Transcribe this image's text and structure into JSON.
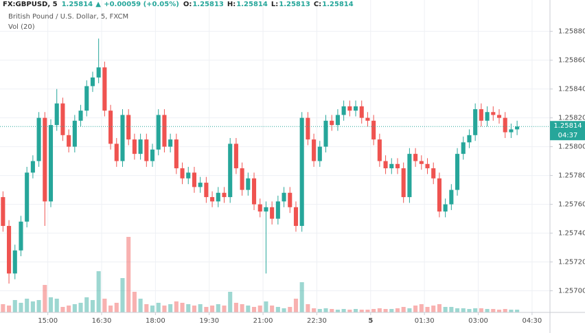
{
  "chart_data": {
    "type": "candlestick",
    "title": "FX:GBPUSD, 5",
    "change": "+0.00059 (+0.05%)",
    "header": {
      "o_label": "O:",
      "open": 1.25813,
      "h_label": "H:",
      "high": 1.25814,
      "l_label": "L:",
      "low": 1.25813,
      "c_label": "C:"
    },
    "subtitle": "British Pound / U.S. Dollar, 5, FXCM",
    "volume_label": "Vol (20)",
    "countdown": "04:37",
    "up_color": "#26a69a",
    "down_color": "#ef5350",
    "open": [
      1.25765,
      1.25745,
      1.25712,
      1.25728,
      1.25748,
      1.25782,
      1.2579,
      1.2582,
      1.25762,
      1.25815,
      1.2583,
      1.25808,
      1.258,
      1.25818,
      1.25825,
      1.25842,
      1.25848,
      1.25855,
      1.25825,
      1.25802,
      1.2579,
      1.25822,
      1.25805,
      1.25795,
      1.25805,
      1.2579,
      1.25798,
      1.25822,
      1.258,
      1.25805,
      1.25785,
      1.25778,
      1.25782,
      1.25772,
      1.25775,
      1.25765,
      1.25762,
      1.25768,
      1.25765,
      1.25802,
      1.25785,
      1.2577,
      1.25778,
      1.2576,
      1.25755,
      1.25758,
      1.2575,
      1.25762,
      1.25768,
      1.25758,
      1.25745,
      1.2582,
      1.25805,
      1.2579,
      1.258,
      1.25818,
      1.25815,
      1.25822,
      1.25828,
      1.25825,
      1.25828,
      1.2582,
      1.25818,
      1.25805,
      1.2579,
      1.25785,
      1.25788,
      1.25785,
      1.25765,
      1.25795,
      1.2579,
      1.25788,
      1.25785,
      1.25778,
      1.25755,
      1.2576,
      1.2577,
      1.25795,
      1.25803,
      1.25808,
      1.25826,
      1.25818,
      1.25824,
      1.25822,
      1.2582,
      1.2581,
      1.25812
    ],
    "high": [
      1.25769,
      1.25749,
      1.25732,
      1.25752,
      1.25786,
      1.25794,
      1.25824,
      1.25824,
      1.25819,
      1.2584,
      1.25834,
      1.25812,
      1.25822,
      1.25829,
      1.25846,
      1.25852,
      1.25875,
      1.25859,
      1.25829,
      1.25806,
      1.25826,
      1.25826,
      1.25809,
      1.25809,
      1.25809,
      1.25802,
      1.25826,
      1.25826,
      1.25809,
      1.25809,
      1.25789,
      1.25786,
      1.25786,
      1.25779,
      1.25779,
      1.25769,
      1.25772,
      1.25772,
      1.25806,
      1.25806,
      1.25789,
      1.25782,
      1.25782,
      1.25764,
      1.25762,
      1.25762,
      1.25766,
      1.25772,
      1.25772,
      1.25762,
      1.25824,
      1.25824,
      1.25809,
      1.25804,
      1.25822,
      1.25822,
      1.25826,
      1.25832,
      1.25832,
      1.25832,
      1.25832,
      1.25824,
      1.25822,
      1.25809,
      1.25794,
      1.25792,
      1.25792,
      1.25789,
      1.25799,
      1.25799,
      1.25794,
      1.25792,
      1.25789,
      1.25782,
      1.25764,
      1.25774,
      1.25799,
      1.25807,
      1.25812,
      1.2583,
      1.2583,
      1.25828,
      1.25828,
      1.25826,
      1.25824,
      1.25816,
      1.25818
    ],
    "low": [
      1.25741,
      1.25705,
      1.25708,
      1.25724,
      1.25744,
      1.25778,
      1.25786,
      1.25745,
      1.25758,
      1.25811,
      1.25804,
      1.25796,
      1.25796,
      1.25814,
      1.25821,
      1.25838,
      1.25844,
      1.25821,
      1.25798,
      1.25786,
      1.25786,
      1.25801,
      1.25791,
      1.25791,
      1.25786,
      1.25786,
      1.25794,
      1.25796,
      1.25796,
      1.25781,
      1.25774,
      1.25774,
      1.25768,
      1.25768,
      1.25761,
      1.25758,
      1.25758,
      1.25761,
      1.25761,
      1.25781,
      1.25766,
      1.25766,
      1.25756,
      1.25751,
      1.25712,
      1.25746,
      1.25746,
      1.25758,
      1.25754,
      1.25741,
      1.25741,
      1.25801,
      1.25786,
      1.25786,
      1.25796,
      1.25811,
      1.25811,
      1.25818,
      1.25821,
      1.25821,
      1.25816,
      1.25814,
      1.25801,
      1.25786,
      1.25781,
      1.25781,
      1.25781,
      1.25761,
      1.25761,
      1.25786,
      1.25784,
      1.25781,
      1.25774,
      1.25751,
      1.25751,
      1.25756,
      1.25766,
      1.25791,
      1.25799,
      1.25804,
      1.25814,
      1.25814,
      1.25818,
      1.25816,
      1.25806,
      1.25806,
      1.25808
    ],
    "close": [
      1.25745,
      1.25712,
      1.25728,
      1.25748,
      1.25782,
      1.2579,
      1.2582,
      1.25762,
      1.25815,
      1.2583,
      1.25808,
      1.258,
      1.25818,
      1.25825,
      1.25842,
      1.25848,
      1.25855,
      1.25825,
      1.25802,
      1.2579,
      1.25822,
      1.25805,
      1.25795,
      1.25805,
      1.2579,
      1.25798,
      1.25822,
      1.258,
      1.25805,
      1.25785,
      1.25778,
      1.25782,
      1.25772,
      1.25775,
      1.25765,
      1.25762,
      1.25768,
      1.25765,
      1.25802,
      1.25785,
      1.2577,
      1.25778,
      1.2576,
      1.25755,
      1.25758,
      1.2575,
      1.25762,
      1.25768,
      1.25758,
      1.25745,
      1.2582,
      1.25805,
      1.2579,
      1.258,
      1.25818,
      1.25815,
      1.25822,
      1.25828,
      1.25825,
      1.25828,
      1.2582,
      1.25818,
      1.25805,
      1.2579,
      1.25785,
      1.25788,
      1.25785,
      1.25765,
      1.25795,
      1.2579,
      1.25788,
      1.25785,
      1.25778,
      1.25755,
      1.2576,
      1.2577,
      1.25795,
      1.25803,
      1.25808,
      1.25826,
      1.25818,
      1.25824,
      1.25822,
      1.2582,
      1.2581,
      1.25812,
      1.25814
    ],
    "volume": [
      12,
      10,
      18,
      14,
      20,
      16,
      18,
      40,
      22,
      20,
      8,
      10,
      12,
      14,
      22,
      18,
      60,
      20,
      10,
      14,
      50,
      110,
      30,
      20,
      12,
      10,
      14,
      10,
      12,
      16,
      14,
      12,
      10,
      12,
      8,
      10,
      12,
      10,
      30,
      14,
      12,
      10,
      8,
      10,
      16,
      10,
      8,
      6,
      8,
      20,
      44,
      12,
      6,
      5,
      6,
      5,
      4,
      5,
      4,
      5,
      4,
      4,
      5,
      6,
      5,
      5,
      6,
      8,
      6,
      10,
      12,
      8,
      10,
      12,
      8,
      8,
      6,
      6,
      5,
      6,
      6,
      5,
      5,
      4,
      5,
      4,
      4
    ],
    "ylim": [
      1.25685,
      1.25897
    ],
    "yticks": [
      {
        "value": 1.257,
        "label": "1.25700"
      },
      {
        "value": 1.2572,
        "label": "1.25720"
      },
      {
        "value": 1.2574,
        "label": "1.25740"
      },
      {
        "value": 1.2576,
        "label": "1.25760"
      },
      {
        "value": 1.2578,
        "label": "1.25780"
      },
      {
        "value": 1.258,
        "label": "1.25800"
      },
      {
        "value": 1.2582,
        "label": "1.25820"
      },
      {
        "value": 1.2584,
        "label": "1.25840"
      },
      {
        "value": 1.2586,
        "label": "1.25860"
      },
      {
        "value": 1.2588,
        "label": "1.25880"
      }
    ],
    "xlim": [
      0,
      92
    ],
    "xticks": [
      {
        "value": 8,
        "label": "15:00"
      },
      {
        "value": 17,
        "label": "16:30"
      },
      {
        "value": 26,
        "label": "18:00"
      },
      {
        "value": 35,
        "label": "19:30"
      },
      {
        "value": 44,
        "label": "21:00"
      },
      {
        "value": 53,
        "label": "22:30"
      },
      {
        "value": 62,
        "label": "5"
      },
      {
        "value": 71,
        "label": "01:30"
      },
      {
        "value": 80,
        "label": "03:00"
      },
      {
        "value": 89,
        "label": "04:30"
      }
    ],
    "grid": true
  }
}
